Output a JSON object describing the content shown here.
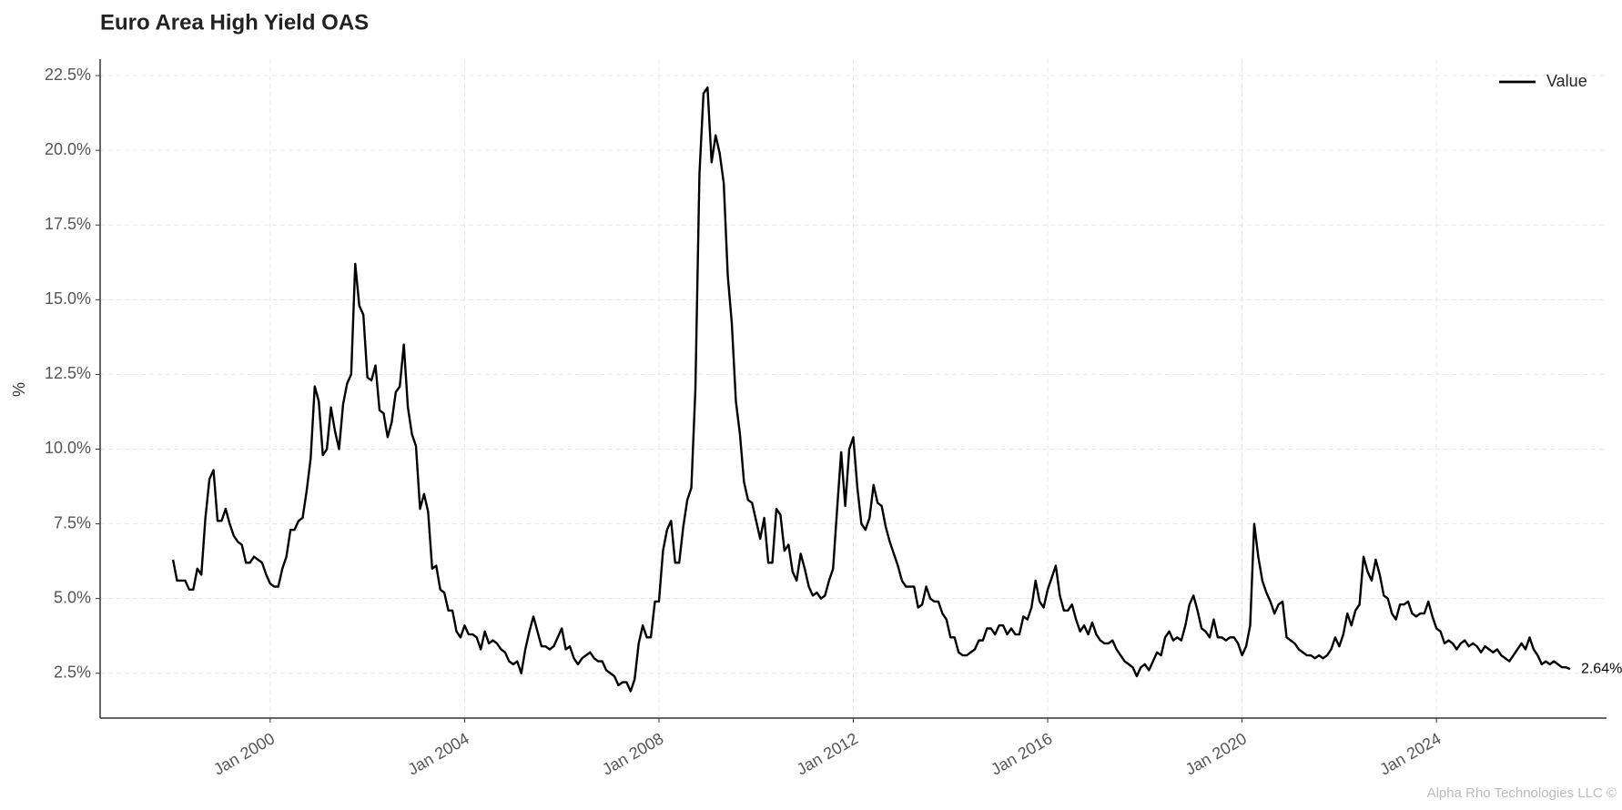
{
  "chart_data": {
    "type": "line",
    "title": "Euro Area High Yield OAS",
    "ylabel": "%",
    "footer": "Alpha Rho Technologies LLC ©",
    "x": [
      "1998-01",
      "1998-02",
      "1998-03",
      "1998-04",
      "1998-05",
      "1998-06",
      "1998-07",
      "1998-08",
      "1998-09",
      "1998-10",
      "1998-11",
      "1998-12",
      "1999-01",
      "1999-02",
      "1999-03",
      "1999-04",
      "1999-05",
      "1999-06",
      "1999-07",
      "1999-08",
      "1999-09",
      "1999-10",
      "1999-11",
      "1999-12",
      "2000-01",
      "2000-02",
      "2000-03",
      "2000-04",
      "2000-05",
      "2000-06",
      "2000-07",
      "2000-08",
      "2000-09",
      "2000-10",
      "2000-11",
      "2000-12",
      "2001-01",
      "2001-02",
      "2001-03",
      "2001-04",
      "2001-05",
      "2001-06",
      "2001-07",
      "2001-08",
      "2001-09",
      "2001-10",
      "2001-11",
      "2001-12",
      "2002-01",
      "2002-02",
      "2002-03",
      "2002-04",
      "2002-05",
      "2002-06",
      "2002-07",
      "2002-08",
      "2002-09",
      "2002-10",
      "2002-11",
      "2002-12",
      "2003-01",
      "2003-02",
      "2003-03",
      "2003-04",
      "2003-05",
      "2003-06",
      "2003-07",
      "2003-08",
      "2003-09",
      "2003-10",
      "2003-11",
      "2003-12",
      "2004-01",
      "2004-02",
      "2004-03",
      "2004-04",
      "2004-05",
      "2004-06",
      "2004-07",
      "2004-08",
      "2004-09",
      "2004-10",
      "2004-11",
      "2004-12",
      "2005-01",
      "2005-02",
      "2005-03",
      "2005-04",
      "2005-05",
      "2005-06",
      "2005-07",
      "2005-08",
      "2005-09",
      "2005-10",
      "2005-11",
      "2005-12",
      "2006-01",
      "2006-02",
      "2006-03",
      "2006-04",
      "2006-05",
      "2006-06",
      "2006-07",
      "2006-08",
      "2006-09",
      "2006-10",
      "2006-11",
      "2006-12",
      "2007-01",
      "2007-02",
      "2007-03",
      "2007-04",
      "2007-05",
      "2007-06",
      "2007-07",
      "2007-08",
      "2007-09",
      "2007-10",
      "2007-11",
      "2007-12",
      "2008-01",
      "2008-02",
      "2008-03",
      "2008-04",
      "2008-05",
      "2008-06",
      "2008-07",
      "2008-08",
      "2008-09",
      "2008-10",
      "2008-11",
      "2008-12",
      "2009-01",
      "2009-02",
      "2009-03",
      "2009-04",
      "2009-05",
      "2009-06",
      "2009-07",
      "2009-08",
      "2009-09",
      "2009-10",
      "2009-11",
      "2009-12",
      "2010-01",
      "2010-02",
      "2010-03",
      "2010-04",
      "2010-05",
      "2010-06",
      "2010-07",
      "2010-08",
      "2010-09",
      "2010-10",
      "2010-11",
      "2010-12",
      "2011-01",
      "2011-02",
      "2011-03",
      "2011-04",
      "2011-05",
      "2011-06",
      "2011-07",
      "2011-08",
      "2011-09",
      "2011-10",
      "2011-11",
      "2011-12",
      "2012-01",
      "2012-02",
      "2012-03",
      "2012-04",
      "2012-05",
      "2012-06",
      "2012-07",
      "2012-08",
      "2012-09",
      "2012-10",
      "2012-11",
      "2012-12",
      "2013-01",
      "2013-02",
      "2013-03",
      "2013-04",
      "2013-05",
      "2013-06",
      "2013-07",
      "2013-08",
      "2013-09",
      "2013-10",
      "2013-11",
      "2013-12",
      "2014-01",
      "2014-02",
      "2014-03",
      "2014-04",
      "2014-05",
      "2014-06",
      "2014-07",
      "2014-08",
      "2014-09",
      "2014-10",
      "2014-11",
      "2014-12",
      "2015-01",
      "2015-02",
      "2015-03",
      "2015-04",
      "2015-05",
      "2015-06",
      "2015-07",
      "2015-08",
      "2015-09",
      "2015-10",
      "2015-11",
      "2015-12",
      "2016-01",
      "2016-02",
      "2016-03",
      "2016-04",
      "2016-05",
      "2016-06",
      "2016-07",
      "2016-08",
      "2016-09",
      "2016-10",
      "2016-11",
      "2016-12",
      "2017-01",
      "2017-02",
      "2017-03",
      "2017-04",
      "2017-05",
      "2017-06",
      "2017-07",
      "2017-08",
      "2017-09",
      "2017-10",
      "2017-11",
      "2017-12",
      "2018-01",
      "2018-02",
      "2018-03",
      "2018-04",
      "2018-05",
      "2018-06",
      "2018-07",
      "2018-08",
      "2018-09",
      "2018-10",
      "2018-11",
      "2018-12",
      "2019-01",
      "2019-02",
      "2019-03",
      "2019-04",
      "2019-05",
      "2019-06",
      "2019-07",
      "2019-08",
      "2019-09",
      "2019-10",
      "2019-11",
      "2019-12",
      "2020-01",
      "2020-02",
      "2020-03",
      "2020-04",
      "2020-05",
      "2020-06",
      "2020-07",
      "2020-08",
      "2020-09",
      "2020-10",
      "2020-11",
      "2020-12",
      "2021-01",
      "2021-02",
      "2021-03",
      "2021-04",
      "2021-05",
      "2021-06",
      "2021-07",
      "2021-08",
      "2021-09",
      "2021-10",
      "2021-11",
      "2021-12",
      "2022-01",
      "2022-02",
      "2022-03",
      "2022-04",
      "2022-05",
      "2022-06",
      "2022-07",
      "2022-08",
      "2022-09",
      "2022-10",
      "2022-11",
      "2022-12",
      "2023-01",
      "2023-02",
      "2023-03",
      "2023-04",
      "2023-05",
      "2023-06",
      "2023-07",
      "2023-08",
      "2023-09",
      "2023-10",
      "2023-11",
      "2023-12",
      "2024-01",
      "2024-02",
      "2024-03",
      "2024-04",
      "2024-05",
      "2024-06",
      "2024-07",
      "2024-08",
      "2024-09",
      "2024-10",
      "2024-11",
      "2024-12",
      "2025-01",
      "2025-02",
      "2025-03",
      "2025-04",
      "2025-05",
      "2025-06",
      "2025-07",
      "2025-08",
      "2025-09",
      "2025-10",
      "2025-11",
      "2025-12",
      "2026-01",
      "2026-02",
      "2026-03",
      "2026-04",
      "2026-05",
      "2026-06",
      "2026-07",
      "2026-08",
      "2026-09",
      "2026-10"
    ],
    "series": [
      {
        "name": "Value",
        "color": "#000000",
        "values": [
          6.3,
          5.6,
          5.6,
          5.6,
          5.3,
          5.3,
          6.0,
          5.8,
          7.7,
          9.0,
          9.3,
          7.6,
          7.6,
          8.0,
          7.5,
          7.1,
          6.9,
          6.8,
          6.2,
          6.2,
          6.4,
          6.3,
          6.2,
          5.8,
          5.5,
          5.4,
          5.4,
          6.0,
          6.4,
          7.3,
          7.3,
          7.6,
          7.7,
          8.6,
          9.7,
          12.1,
          11.6,
          9.8,
          10.0,
          11.4,
          10.6,
          10.0,
          11.5,
          12.2,
          12.5,
          16.2,
          14.8,
          14.5,
          12.4,
          12.3,
          12.8,
          11.3,
          11.2,
          10.4,
          10.9,
          11.9,
          12.1,
          13.5,
          11.4,
          10.5,
          10.1,
          8.0,
          8.5,
          7.9,
          6.0,
          6.1,
          5.3,
          5.2,
          4.6,
          4.6,
          3.9,
          3.7,
          4.1,
          3.8,
          3.8,
          3.7,
          3.3,
          3.9,
          3.5,
          3.6,
          3.5,
          3.3,
          3.2,
          2.9,
          2.8,
          2.9,
          2.5,
          3.3,
          3.9,
          4.4,
          3.9,
          3.4,
          3.4,
          3.3,
          3.4,
          3.7,
          4.0,
          3.3,
          3.4,
          3.0,
          2.8,
          3.0,
          3.1,
          3.2,
          3.0,
          2.9,
          2.9,
          2.6,
          2.5,
          2.4,
          2.1,
          2.2,
          2.2,
          1.9,
          2.3,
          3.5,
          4.1,
          3.7,
          3.7,
          4.9,
          4.9,
          6.6,
          7.3,
          7.6,
          6.2,
          6.2,
          7.4,
          8.3,
          8.7,
          12.0,
          19.2,
          21.9,
          22.1,
          19.6,
          20.5,
          19.9,
          18.9,
          15.8,
          14.2,
          11.6,
          10.5,
          8.9,
          8.3,
          8.2,
          7.6,
          7.0,
          7.7,
          6.2,
          6.2,
          8.0,
          7.8,
          6.6,
          6.8,
          5.9,
          5.6,
          6.5,
          6.0,
          5.4,
          5.1,
          5.2,
          5.0,
          5.1,
          5.6,
          6.0,
          8.0,
          9.9,
          8.1,
          10.0,
          10.4,
          8.7,
          7.5,
          7.3,
          7.7,
          8.8,
          8.2,
          8.1,
          7.4,
          6.9,
          6.5,
          6.1,
          5.6,
          5.4,
          5.4,
          5.4,
          4.7,
          4.8,
          5.4,
          5.0,
          4.9,
          4.9,
          4.5,
          4.3,
          3.7,
          3.7,
          3.2,
          3.1,
          3.1,
          3.2,
          3.3,
          3.6,
          3.6,
          4.0,
          4.0,
          3.8,
          4.1,
          4.1,
          3.8,
          4.0,
          3.8,
          3.8,
          4.4,
          4.3,
          4.7,
          5.6,
          4.9,
          4.7,
          5.3,
          5.7,
          6.1,
          5.1,
          4.6,
          4.6,
          4.8,
          4.3,
          3.9,
          4.1,
          3.8,
          4.2,
          3.8,
          3.6,
          3.5,
          3.5,
          3.6,
          3.3,
          3.1,
          2.9,
          2.8,
          2.7,
          2.4,
          2.7,
          2.8,
          2.6,
          2.9,
          3.2,
          3.1,
          3.7,
          3.9,
          3.6,
          3.7,
          3.6,
          4.1,
          4.8,
          5.1,
          4.6,
          4.0,
          3.9,
          3.7,
          4.3,
          3.7,
          3.7,
          3.6,
          3.7,
          3.7,
          3.5,
          3.1,
          3.4,
          4.1,
          7.5,
          6.4,
          5.6,
          5.2,
          4.9,
          4.5,
          4.8,
          4.9,
          3.7,
          3.6,
          3.5,
          3.3,
          3.2,
          3.1,
          3.1,
          3.0,
          3.1,
          3.0,
          3.1,
          3.3,
          3.7,
          3.4,
          3.8,
          4.5,
          4.1,
          4.6,
          4.8,
          6.4,
          5.9,
          5.6,
          6.3,
          5.8,
          5.1,
          5.0,
          4.5,
          4.3,
          4.8,
          4.8,
          4.9,
          4.5,
          4.4,
          4.5,
          4.5,
          4.9,
          4.4,
          4.0,
          3.9,
          3.5,
          3.6,
          3.5,
          3.3,
          3.5,
          3.6,
          3.4,
          3.5,
          3.4,
          3.2,
          3.4,
          3.3,
          3.2,
          3.3,
          3.1,
          3.0,
          2.9,
          3.1,
          3.3,
          3.5,
          3.3,
          3.7,
          3.3,
          3.1,
          2.8,
          2.9,
          2.8,
          2.9,
          2.8,
          2.7,
          2.7,
          2.64
        ]
      }
    ],
    "end_label": "2.64%",
    "xlim": [
      "1996-07",
      "2027-07"
    ],
    "xticks": [
      {
        "value": "2000-01",
        "label": "Jan 2000"
      },
      {
        "value": "2004-01",
        "label": "Jan 2004"
      },
      {
        "value": "2008-01",
        "label": "Jan 2008"
      },
      {
        "value": "2012-01",
        "label": "Jan 2012"
      },
      {
        "value": "2016-01",
        "label": "Jan 2016"
      },
      {
        "value": "2020-01",
        "label": "Jan 2020"
      },
      {
        "value": "2024-01",
        "label": "Jan 2024"
      }
    ],
    "ylim": [
      1.0,
      23.05
    ],
    "yticks": [
      {
        "value": 2.5,
        "label": "2.5%"
      },
      {
        "value": 5,
        "label": "5.0%"
      },
      {
        "value": 7.5,
        "label": "7.5%"
      },
      {
        "value": 10,
        "label": "10.0%"
      },
      {
        "value": 12.5,
        "label": "12.5%"
      },
      {
        "value": 15,
        "label": "15.0%"
      },
      {
        "value": 17.5,
        "label": "17.5%"
      },
      {
        "value": 20,
        "label": "20.0%"
      },
      {
        "value": 22.5,
        "label": "22.5%"
      }
    ],
    "grid": true,
    "legend": "upper right"
  }
}
